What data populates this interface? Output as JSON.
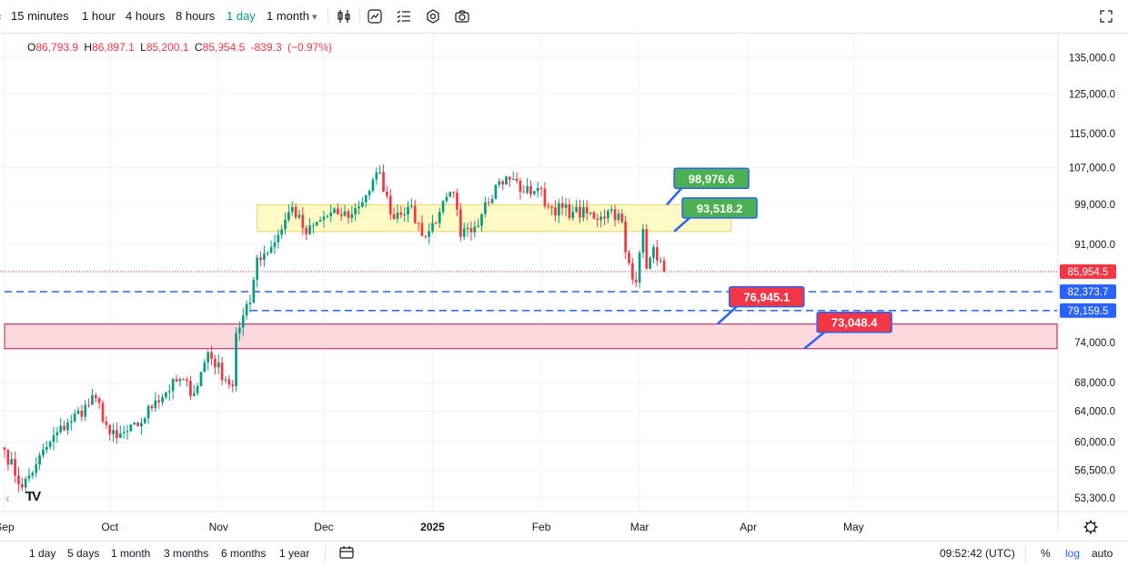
{
  "toolbar": {
    "timeframes": [
      "15 minutes",
      "1 hour",
      "4 hours",
      "8 hours",
      "1 day",
      "1 month"
    ],
    "active_timeframe": "1 day",
    "dropdown_glyph": "▾",
    "icons": [
      "candles-icon",
      "compare-icon",
      "indicators-icon",
      "settings-icon",
      "camera-icon",
      "fullscreen-icon"
    ]
  },
  "legend": {
    "open_label": "O",
    "open": "86,793.9",
    "high_label": "H",
    "high": "86,897.1",
    "low_label": "L",
    "low": "85,200.1",
    "close_label": "C",
    "close": "85,954.5",
    "change": "-839.3",
    "change_pct": "(−0.97%)"
  },
  "chart_data": {
    "type": "candlestick",
    "scale": "log",
    "y_ticks": [
      135000,
      125000,
      115000,
      107000,
      99000,
      91000,
      74000,
      68000,
      64000,
      60000,
      56500,
      53300
    ],
    "y_tick_labels": [
      "135,000.0",
      "125,000.0",
      "115,000.0",
      "107,000.0",
      "99,000.0",
      "91,000.0",
      "74,000.0",
      "68,000.0",
      "64,000.0",
      "60,000.0",
      "56,500.0",
      "53,300.0"
    ],
    "x_ticks": [
      "Sep",
      "Oct",
      "Nov",
      "Dec",
      "2025",
      "Feb",
      "Mar",
      "Apr",
      "May"
    ],
    "x_tick_dates": [
      "2024-09-01",
      "2024-10-01",
      "2024-11-01",
      "2024-12-01",
      "2025-01-01",
      "2025-02-01",
      "2025-03-01",
      "2025-04-01",
      "2025-05-01"
    ],
    "x_range": [
      "2024-09-01",
      "2025-06-28"
    ],
    "y_range": [
      51800,
      142000
    ],
    "grid": true,
    "last_price": 85954.5,
    "last_price_label": "85,954.5",
    "anchors": [
      [
        "2024-09-01",
        59000
      ],
      [
        "2024-09-06",
        54500
      ],
      [
        "2024-09-10",
        57200
      ],
      [
        "2024-09-14",
        60000
      ],
      [
        "2024-09-19",
        62500
      ],
      [
        "2024-09-27",
        65800
      ],
      [
        "2024-10-01",
        61000
      ],
      [
        "2024-10-03",
        60500
      ],
      [
        "2024-10-09",
        62000
      ],
      [
        "2024-10-14",
        65500
      ],
      [
        "2024-10-21",
        68500
      ],
      [
        "2024-10-25",
        66500
      ],
      [
        "2024-10-29",
        72500
      ],
      [
        "2024-11-03",
        68500
      ],
      [
        "2024-11-05",
        67500
      ],
      [
        "2024-11-06",
        75500
      ],
      [
        "2024-11-10",
        80500
      ],
      [
        "2024-11-12",
        88500
      ],
      [
        "2024-11-16",
        90500
      ],
      [
        "2024-11-22",
        98500
      ],
      [
        "2024-11-26",
        93000
      ],
      [
        "2024-12-01",
        96500
      ],
      [
        "2024-12-05",
        97000
      ],
      [
        "2024-12-09",
        97000
      ],
      [
        "2024-12-13",
        101000
      ],
      [
        "2024-12-17",
        106000
      ],
      [
        "2024-12-20",
        97000
      ],
      [
        "2024-12-25",
        98500
      ],
      [
        "2024-12-30",
        92500
      ],
      [
        "2025-01-03",
        97500
      ],
      [
        "2025-01-07",
        101500
      ],
      [
        "2025-01-09",
        92500
      ],
      [
        "2025-01-13",
        94500
      ],
      [
        "2025-01-16",
        99500
      ],
      [
        "2025-01-20",
        104000
      ],
      [
        "2025-01-24",
        104500
      ],
      [
        "2025-01-27",
        101500
      ],
      [
        "2025-01-31",
        102500
      ],
      [
        "2025-02-03",
        98500
      ],
      [
        "2025-02-10",
        97500
      ],
      [
        "2025-02-18",
        96500
      ],
      [
        "2025-02-21",
        98000
      ],
      [
        "2025-02-24",
        95500
      ],
      [
        "2025-02-25",
        89500
      ],
      [
        "2025-02-27",
        84500
      ],
      [
        "2025-02-28",
        84000
      ],
      [
        "2025-03-02",
        94000
      ],
      [
        "2025-03-03",
        86500
      ],
      [
        "2025-03-05",
        90500
      ],
      [
        "2025-03-07",
        88000
      ],
      [
        "2025-03-08",
        85954.5
      ]
    ],
    "zones": [
      {
        "name": "resistance-zone",
        "low": 93518.2,
        "high": 98976.6,
        "from": "2024-11-12",
        "to": "2025-03-27",
        "color": "#fff9c4"
      },
      {
        "name": "support-zone",
        "low": 73048.4,
        "high": 76945.1,
        "from": "2024-09-01",
        "to": "2025-06-28",
        "color": "#fdd8dc"
      }
    ],
    "dashed_lines": [
      {
        "name": "line-82373",
        "value": 82373.7,
        "label": "82,373.7",
        "from": "2024-09-01"
      },
      {
        "name": "line-79159",
        "value": 79159.5,
        "label": "79,159.5",
        "from": "2024-11-10"
      }
    ],
    "callouts": [
      {
        "name": "callout-98976",
        "label": "98,976.6",
        "value": 98976.6,
        "color": "#4caf50"
      },
      {
        "name": "callout-93518",
        "label": "93,518.2",
        "value": 93518.2,
        "color": "#4caf50"
      },
      {
        "name": "callout-76945",
        "label": "76,945.1",
        "value": 76945.1,
        "color": "#f23645"
      },
      {
        "name": "callout-73048",
        "label": "73,048.4",
        "value": 73048.4,
        "color": "#f23645"
      }
    ],
    "up_color": "#089981",
    "down_color": "#f23645"
  },
  "bottom": {
    "ranges": [
      "1 day",
      "5 days",
      "1 month",
      "3 months",
      "6 months",
      "1 year"
    ],
    "time": "09:52:42 (UTC)",
    "percent_label": "%",
    "log_label": "log",
    "auto_label": "auto"
  },
  "logo": "TV"
}
